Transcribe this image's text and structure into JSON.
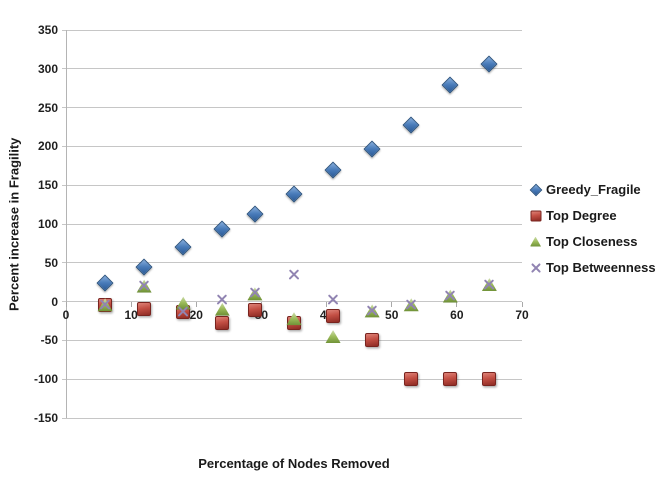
{
  "chart_data": {
    "type": "scatter",
    "title": "",
    "xlabel": "Percentage of Nodes Removed",
    "ylabel": "Percent increase in Fragility",
    "xlim": [
      0,
      70
    ],
    "ylim": [
      -150,
      350
    ],
    "x_ticks": [
      0,
      10,
      20,
      30,
      40,
      50,
      60,
      70
    ],
    "y_ticks": [
      350,
      300,
      250,
      200,
      150,
      100,
      50,
      0,
      -50,
      -100,
      -150
    ],
    "grid": "horizontal-gridlines",
    "legend_position": "right",
    "x": [
      6,
      12,
      18,
      24,
      29,
      35,
      41,
      47,
      53,
      59,
      65
    ],
    "series": [
      {
        "name": "Greedy_Fragile",
        "marker": "diamond",
        "color": "#4577B5",
        "values": [
          24,
          45,
          71,
          93,
          113,
          139,
          170,
          197,
          228,
          279,
          306
        ]
      },
      {
        "name": "Top Degree",
        "marker": "square",
        "color": "#C0504D",
        "values": [
          -4,
          -9,
          -13,
          -28,
          -11,
          -27,
          -19,
          -50,
          -100,
          -100,
          -100
        ]
      },
      {
        "name": "Top Closeness",
        "marker": "triangle",
        "color": "#9BBB59",
        "values": [
          -4,
          20,
          -2,
          -10,
          10,
          -22,
          -45,
          -12,
          -4,
          7,
          22
        ]
      },
      {
        "name": "Top Betweenness",
        "marker": "x",
        "color": "#9184B2",
        "values": [
          -4,
          20,
          -13,
          3,
          12,
          35,
          2,
          -12,
          -4,
          7,
          22
        ]
      }
    ]
  }
}
